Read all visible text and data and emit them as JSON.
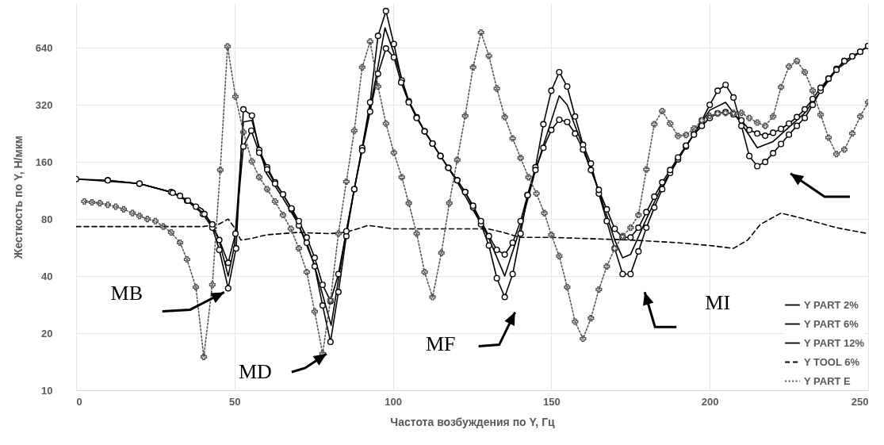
{
  "chart_data": {
    "type": "line",
    "xlabel": "Частота возбуждения по Y, Гц",
    "ylabel": "Жесткость по Y, Н/мкм",
    "xlim": [
      0,
      250
    ],
    "xticks": [
      0,
      50,
      100,
      150,
      200,
      250
    ],
    "ylim": [
      10,
      1100
    ],
    "yticks": [
      10,
      20,
      40,
      80,
      160,
      320,
      640
    ],
    "log": true,
    "grid": true,
    "legend": "bottom right",
    "series": [
      {
        "name": "Y PART 2%",
        "color": "#000000",
        "marker": "circle",
        "line_style": "solid",
        "x": [
          0,
          10,
          20,
          30,
          35,
          40,
          43,
          45.2,
          48,
          50.5,
          52.8,
          55.5,
          57.8,
          60.3,
          62.8,
          65.3,
          68,
          70.3,
          72.8,
          75.3,
          77.8,
          80.3,
          82.8,
          85.3,
          87.8,
          90.3,
          92.8,
          95.3,
          97.8,
          100.3,
          102.8,
          105,
          107.5,
          110,
          112.5,
          115,
          117.5,
          120.3,
          122.8,
          125.3,
          127.8,
          130.3,
          132.8,
          135.3,
          137.8,
          140.3,
          142.5,
          145,
          147.5,
          150,
          152.5,
          155,
          157.5,
          160,
          162.5,
          165,
          167.5,
          170,
          172.5,
          175,
          177.5,
          180,
          182.5,
          185,
          187.5,
          190,
          192.5,
          195,
          197.5,
          200,
          202.5,
          205,
          207.5,
          210,
          212.5,
          215,
          217.5,
          220,
          222.5,
          225,
          227.5,
          230,
          232.5,
          235,
          237.5,
          240,
          242.5,
          245,
          247.5,
          250
        ],
        "values": [
          130,
          128,
          123,
          111,
          100,
          85,
          72,
          55,
          34.5,
          56,
          303,
          281,
          185,
          150,
          125,
          108,
          90,
          74,
          60,
          45,
          28,
          18,
          33,
          65,
          115,
          190,
          330,
          740,
          1000,
          670,
          430,
          335,
          275,
          232,
          200,
          172,
          149,
          128,
          111,
          92,
          75,
          58,
          39,
          31,
          41,
          67,
          107,
          150,
          253,
          380,
          476,
          400,
          278,
          197,
          157,
          109,
          78,
          56,
          41,
          41,
          54,
          72,
          92,
          115,
          140,
          165,
          193,
          225,
          265,
          320,
          380,
          408,
          350,
          248,
          172,
          152,
          160,
          178,
          199,
          223,
          248,
          273,
          320,
          380,
          440,
          495,
          545,
          577,
          610,
          654
        ]
      },
      {
        "name": "Y PART 6%",
        "color": "#000000",
        "line_style": "solid",
        "x": [
          0,
          20,
          30,
          40,
          45,
          48,
          50,
          52.8,
          55.5,
          60,
          65,
          70,
          75,
          80.5,
          85,
          90,
          95,
          97.5,
          100,
          105,
          110,
          120,
          130,
          135.3,
          140,
          145,
          152.5,
          155,
          160,
          165,
          170,
          172.5,
          175,
          180,
          185,
          195,
          200,
          205,
          210,
          215,
          220,
          230,
          240,
          250
        ],
        "values": [
          130,
          123,
          111,
          90,
          63,
          40,
          58,
          260,
          265,
          140,
          105,
          76,
          47,
          22,
          65,
          180,
          480,
          815,
          620,
          335,
          232,
          128,
          65,
          40,
          70,
          145,
          357,
          320,
          192,
          112,
          62,
          50,
          52,
          80,
          120,
          225,
          300,
          330,
          255,
          190,
          205,
          290,
          490,
          654
        ]
      },
      {
        "name": "Y PART 12%",
        "color": "#000000",
        "marker": "circle",
        "line_style": "solid",
        "x": [
          10,
          20,
          30.5,
          32.8,
          35.3,
          37.8,
          40.5,
          43,
          45.2,
          48,
          50.3,
          52.8,
          55.3,
          57.8,
          60.3,
          62.8,
          65.3,
          68,
          70.3,
          72.8,
          75.3,
          77.8,
          80.3,
          82.8,
          85.3,
          87.8,
          90.3,
          92.8,
          95.3,
          97.8,
          100.3,
          102.6,
          105,
          107.5,
          110,
          112.5,
          115,
          117.5,
          120.3,
          122.8,
          125.3,
          127.8,
          130.3,
          132.8,
          135.3,
          137.8,
          140.3,
          142.5,
          145,
          147.5,
          150,
          152.5,
          155,
          157.5,
          160,
          162.5,
          165,
          167.5,
          170,
          172.5,
          175,
          177.5,
          180,
          182.5,
          185,
          187.5,
          190,
          192.5,
          195,
          197.5,
          200,
          202.5,
          205,
          207.5,
          210,
          212.5,
          215,
          217.5,
          220,
          222.5,
          225,
          227.5,
          230,
          232.5,
          235,
          237.5,
          240,
          242.5,
          245,
          247.5,
          250
        ],
        "values": [
          128,
          123,
          110,
          106,
          100,
          93,
          85,
          75,
          62,
          47,
          67,
          193,
          234,
          179,
          146,
          123,
          108,
          91,
          78,
          64,
          50,
          36,
          29.5,
          41,
          69,
          115,
          184,
          295,
          467,
          635,
          570,
          420,
          330,
          273,
          232,
          200,
          172,
          149,
          128,
          111,
          94,
          78,
          65,
          55,
          52,
          60,
          78,
          107,
          145,
          190,
          236,
          267,
          260,
          226,
          186,
          145,
          114,
          90,
          71,
          64,
          64,
          72,
          87,
          105,
          125,
          145,
          169,
          195,
          223,
          248,
          273,
          289,
          293,
          285,
          265,
          236,
          226,
          220,
          228,
          239,
          255,
          276,
          303,
          344,
          394,
          440,
          490,
          545,
          577,
          610,
          654
        ]
      },
      {
        "name": "Y TOOL 6%",
        "color": "#000000",
        "line_style": "dashed",
        "x": [
          0,
          40,
          45,
          48,
          50,
          52,
          55,
          60,
          70,
          80,
          85,
          90,
          92,
          95,
          100,
          130,
          135,
          140,
          150,
          175,
          190,
          200,
          207.5,
          212,
          216,
          222.5,
          230,
          240,
          250
        ],
        "values": [
          73,
          73,
          75,
          80,
          72,
          62,
          63,
          66,
          68,
          67,
          68,
          72,
          74,
          73,
          71,
          71,
          68,
          64,
          64,
          62,
          60,
          58,
          56,
          62,
          75,
          86,
          80,
          72,
          67
        ]
      },
      {
        "name": "Y PART E",
        "color": "#555555",
        "marker": "cross",
        "line_style": "dotted",
        "x": [
          2.6,
          5,
          7.5,
          10,
          12.5,
          15,
          17.8,
          20,
          22.5,
          25,
          27.5,
          30,
          32.8,
          35,
          37.8,
          40.3,
          43,
          45.5,
          47.8,
          50.3,
          52.8,
          55.5,
          57.8,
          60.3,
          62.8,
          65.3,
          67.8,
          70.3,
          72.8,
          75.3,
          77.8,
          80.3,
          82.8,
          85.3,
          87.8,
          90.3,
          92.8,
          95.3,
          97.8,
          100.3,
          102.8,
          105,
          107.5,
          110,
          112.5,
          115.3,
          117.8,
          120.3,
          122.8,
          125.3,
          127.8,
          130.3,
          132.8,
          135.3,
          137.8,
          140.3,
          142.8,
          145.3,
          147.8,
          150,
          152.5,
          155,
          157.5,
          160,
          162.5,
          165,
          167.5,
          170,
          172.5,
          175,
          177.5,
          180,
          182.5,
          185,
          187.5,
          190,
          192.5,
          195,
          197.5,
          200,
          202.5,
          205,
          207.5,
          210,
          212.5,
          215,
          217.5,
          220,
          222.5,
          225,
          227.5,
          230,
          232.5,
          235,
          237.5,
          240,
          242.5,
          245,
          247.5,
          250
        ],
        "values": [
          99,
          98,
          97,
          95,
          93,
          90,
          86,
          83,
          80,
          78,
          73,
          68,
          60,
          49,
          35,
          15,
          36,
          145,
          650,
          354,
          230,
          161,
          133,
          115,
          99,
          84,
          71,
          56,
          42,
          26,
          15.6,
          30,
          67,
          126,
          234,
          505,
          690,
          400,
          255,
          179,
          133,
          97,
          67,
          42,
          31,
          53,
          97,
          164,
          280,
          505,
          770,
          580,
          390,
          276,
          213,
          168,
          133,
          109,
          86,
          66,
          51,
          35,
          23,
          18.7,
          24,
          34,
          45,
          56,
          65,
          72,
          84,
          146,
          253,
          297,
          255,
          219,
          222,
          240,
          265,
          280,
          288,
          290,
          290,
          290,
          273,
          258,
          248,
          278,
          397,
          510,
          545,
          476,
          380,
          284,
          215,
          176,
          186,
          226,
          278,
          330
        ]
      }
    ],
    "annotations": [
      {
        "text": "MB",
        "x": 48,
        "y": 34.5
      },
      {
        "text": "MD",
        "x": 80.3,
        "y": 18
      },
      {
        "text": "MF",
        "x": 135.3,
        "y": 31
      },
      "MI"
    ]
  }
}
